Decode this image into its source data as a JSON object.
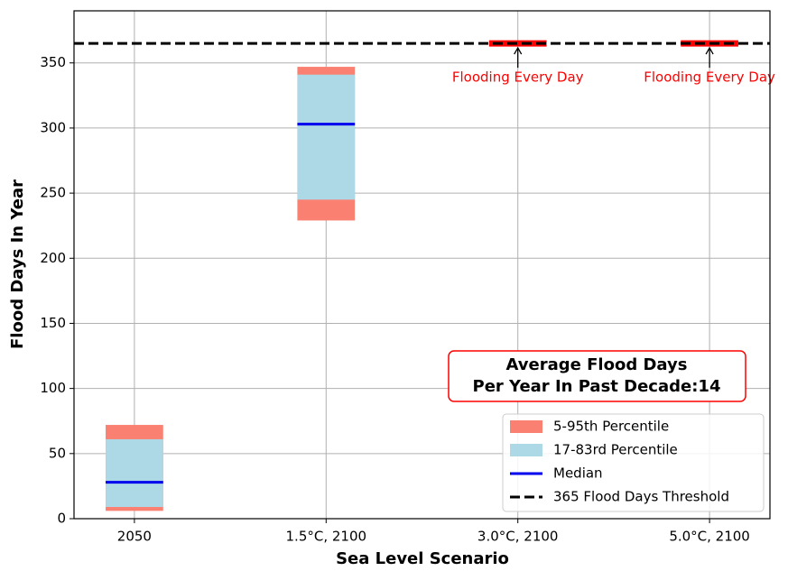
{
  "chart_data": {
    "type": "range-bar",
    "x_label": "Sea Level Scenario",
    "y_label": "Flood Days In Year",
    "categories": [
      "2050",
      "1.5°C, 2100",
      "3.0°C, 2100",
      "5.0°C, 2100"
    ],
    "series": [
      {
        "name": "5-95th Percentile",
        "color": "#fa8072",
        "low": [
          6,
          229,
          null,
          null
        ],
        "high": [
          72,
          347,
          null,
          null
        ]
      },
      {
        "name": "17-83rd Percentile",
        "color": "#add8e6",
        "low": [
          9,
          245,
          null,
          null
        ],
        "high": [
          61,
          341,
          null,
          null
        ]
      },
      {
        "name": "Median",
        "color": "#0000ee",
        "values": [
          28,
          303,
          null,
          null
        ]
      }
    ],
    "threshold": {
      "name": "365 Flood Days Threshold",
      "value": 365,
      "color": "#000000"
    },
    "flood_marker": {
      "color": "#ff0000",
      "values": [
        null,
        null,
        365,
        365
      ],
      "labels": [
        null,
        null,
        "Flooding Every Day",
        "Flooding Every Day"
      ]
    },
    "text_box": [
      "Average Flood Days",
      "Per Year In Past Decade:14"
    ],
    "ylim": [
      0,
      390
    ],
    "yticks": [
      0,
      50,
      100,
      150,
      200,
      250,
      300,
      350
    ],
    "grid": true,
    "legend": "lower right"
  }
}
